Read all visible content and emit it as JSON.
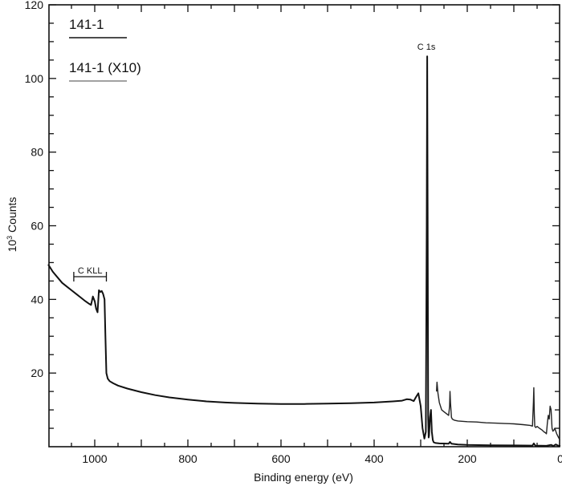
{
  "chart_data": {
    "type": "line",
    "title": "",
    "xlabel": "Binding energy (eV)",
    "ylabel": "10^3 Counts",
    "ylabel_base": "10",
    "ylabel_sup": "3",
    "ylabel_rest": " Counts",
    "xlim": [
      1100,
      0
    ],
    "ylim": [
      0,
      120
    ],
    "x_reversed": true,
    "grid": false,
    "x_ticks": [
      1000,
      800,
      600,
      400,
      200,
      0
    ],
    "x_tick_labels": [
      "1000",
      "800",
      "600",
      "400",
      "200",
      "0"
    ],
    "x_minor_step": 50,
    "y_ticks": [
      20,
      40,
      60,
      80,
      100,
      120
    ],
    "y_tick_labels": [
      "20",
      "40",
      "60",
      "80",
      "100",
      "120"
    ],
    "y_minor_step": 5,
    "legend_position": "upper left",
    "legend": [
      {
        "label": "141-1",
        "style": "solid"
      },
      {
        "label": "141-1 (X10)",
        "style": "dotted-thin"
      }
    ],
    "annotations": [
      {
        "text": "C 1s",
        "x": 286,
        "y": 107
      },
      {
        "text": "C KLL",
        "x_range": [
          1045,
          975
        ],
        "y": 46
      }
    ],
    "series": [
      {
        "name": "141-1",
        "x": [
          1100,
          1090,
          1080,
          1070,
          1060,
          1050,
          1040,
          1030,
          1020,
          1012,
          1008,
          1004,
          1000,
          997,
          994,
          991,
          988,
          985,
          982,
          979,
          977,
          975,
          972,
          968,
          960,
          950,
          930,
          900,
          870,
          840,
          800,
          760,
          720,
          700,
          650,
          600,
          550,
          500,
          450,
          400,
          360,
          340,
          330,
          322,
          315,
          310,
          305,
          300,
          296,
          292,
          289,
          287,
          286,
          285,
          284,
          283,
          282,
          280,
          278,
          276,
          274,
          272,
          268,
          260,
          240,
          237,
          234,
          220,
          200,
          150,
          100,
          60,
          57,
          54,
          30,
          20,
          15,
          10,
          5,
          0
        ],
        "y": [
          49.5,
          47.5,
          46,
          44.5,
          43.5,
          42.5,
          41.5,
          40.5,
          39.5,
          38.8,
          38.5,
          40.8,
          39.5,
          37.5,
          36.5,
          42.5,
          42,
          42.3,
          41.5,
          40,
          30,
          20,
          18.5,
          17.8,
          17.2,
          16.6,
          15.8,
          14.8,
          14,
          13.4,
          12.8,
          12.3,
          12,
          11.9,
          11.7,
          11.6,
          11.6,
          11.7,
          11.8,
          12,
          12.3,
          12.5,
          12.9,
          12.8,
          12.4,
          13.5,
          14.5,
          11,
          5,
          2.2,
          4,
          60,
          106,
          60,
          8,
          2.5,
          3,
          8,
          10,
          4,
          1.8,
          1.2,
          1.0,
          0.9,
          0.8,
          1.3,
          0.8,
          0.6,
          0.5,
          0.4,
          0.35,
          0.3,
          0.9,
          0.3,
          0.25,
          0.5,
          0.2,
          0.6,
          0.3,
          0.2
        ]
      },
      {
        "name": "141-1 (X10)",
        "x": [
          266,
          265,
          263,
          260,
          255,
          250,
          245,
          240,
          238,
          237,
          236,
          234,
          232,
          228,
          220,
          200,
          180,
          160,
          140,
          120,
          100,
          80,
          65,
          60,
          58,
          57,
          56,
          55,
          53,
          50,
          45,
          40,
          35,
          32,
          30,
          28,
          26,
          24,
          22,
          20,
          18,
          16,
          14,
          12,
          8,
          4,
          1
        ],
        "y": [
          15,
          17.5,
          14.5,
          12,
          10,
          9.5,
          9,
          8.5,
          11,
          15,
          12,
          8,
          7.5,
          7.2,
          7,
          6.8,
          6.7,
          6.5,
          6.4,
          6.3,
          6.2,
          6,
          5.8,
          5.6,
          12,
          16,
          9,
          5.5,
          5.2,
          5.5,
          5,
          4.6,
          4,
          3.8,
          3.5,
          6.5,
          8.5,
          7.5,
          11,
          10,
          5,
          4.2,
          4.5,
          5,
          3.5,
          2.5,
          1.8
        ]
      }
    ]
  }
}
